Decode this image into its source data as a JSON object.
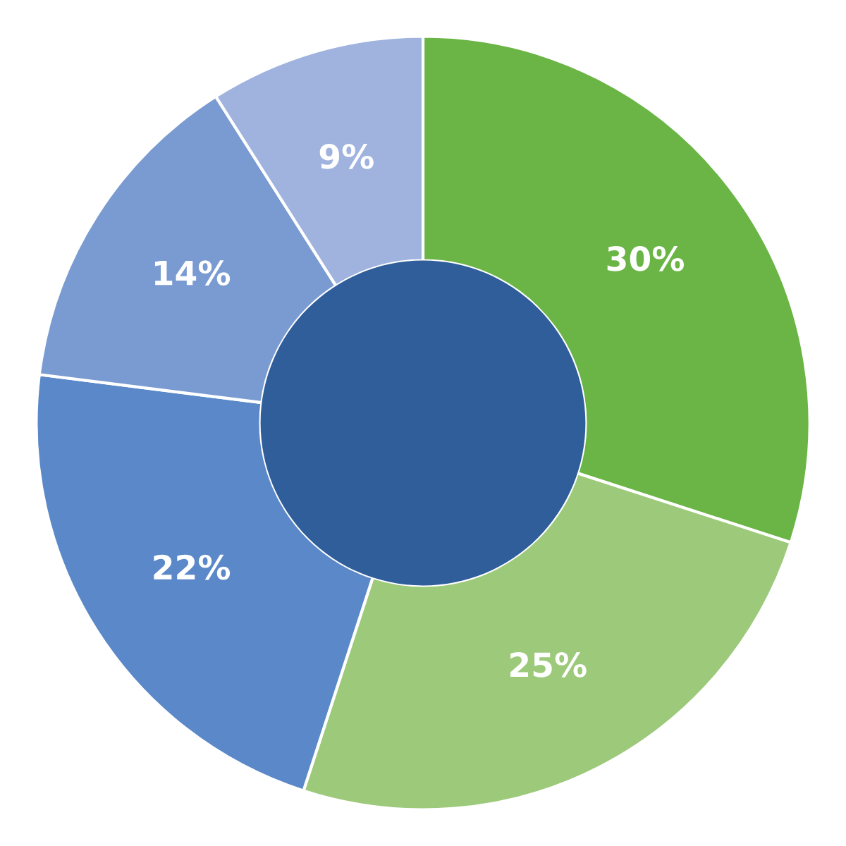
{
  "chart_data": {
    "type": "donut",
    "categories": [
      null,
      null,
      null,
      null,
      null
    ],
    "values": [
      30,
      25,
      22,
      14,
      9
    ],
    "colors": [
      "#6ab545",
      "#9cc97a",
      "#5b88c9",
      "#7a9bd2",
      "#9fb3de"
    ],
    "value_labels": [
      "30%",
      "25%",
      "22%",
      "14%",
      "9%"
    ]
  }
}
